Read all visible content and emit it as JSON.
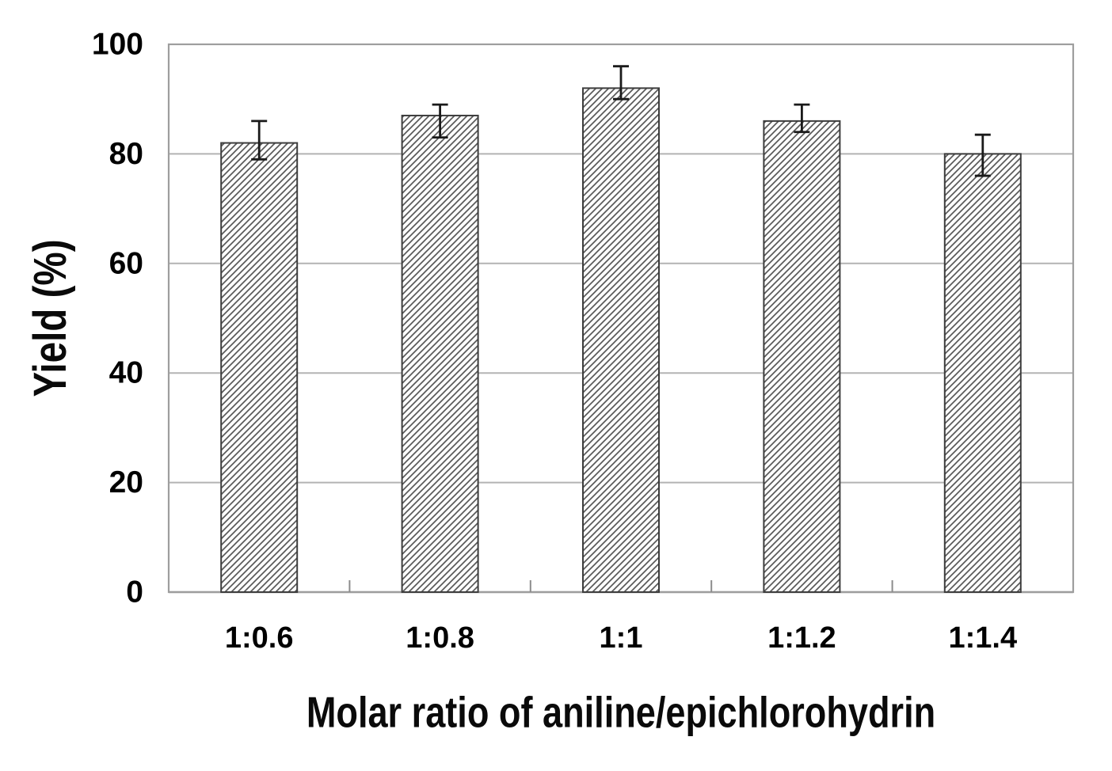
{
  "chart_data": {
    "type": "bar",
    "title": "",
    "xlabel": "Molar ratio of aniline/epichlorohydrin",
    "ylabel": "Yield (%)",
    "categories": [
      "1:0.6",
      "1:0.8",
      "1:1",
      "1:1.2",
      "1:1.4"
    ],
    "values": [
      82,
      87,
      92,
      86,
      80
    ],
    "error_plus": [
      4,
      2,
      4,
      3,
      3.5
    ],
    "error_minus": [
      3,
      4,
      2,
      2,
      4
    ],
    "yticks": [
      0,
      20,
      40,
      60,
      80,
      100
    ],
    "ylim": [
      0,
      100
    ],
    "grid": true,
    "legend_position": "none",
    "bar_fill_style": "diagonal-hatch",
    "colors": {
      "background": "#ffffff",
      "frame": "#9e9e9e",
      "gridline": "#b3b3b3",
      "bar_hatch": "#595959",
      "bar_border": "#3d3d3d",
      "error_bar": "#1a1a1a",
      "text": "#000000",
      "category_tick": "#8c8c8c"
    }
  }
}
